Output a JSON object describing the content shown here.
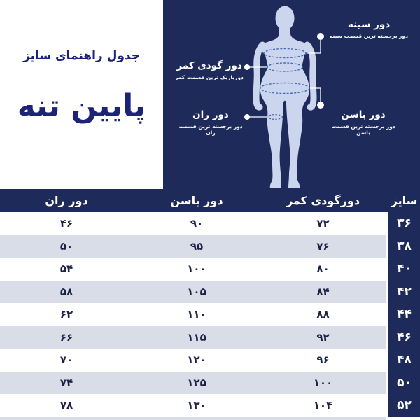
{
  "left_panel": {
    "heading": "جدول راهنمای سایز",
    "title": "پایین تنه"
  },
  "diagram": {
    "figure": "female-body-silhouette",
    "labels": {
      "chest": {
        "title": "دور سینه",
        "subtitle": "دور برجسته ترین قسمت سینه"
      },
      "waist": {
        "title": "دور گودی کمر",
        "subtitle": "دورباریک ترین قسمت کمر"
      },
      "hips": {
        "title": "دور باسن",
        "subtitle": "دور برجسته ترین قسمت باسن"
      },
      "thigh": {
        "title": "دور ران",
        "subtitle": "دور برجسته ترین قسمت ران"
      }
    }
  },
  "table": {
    "headers": {
      "size": "سایز",
      "waist": "دورگودی کمر",
      "hips": "دور باسن",
      "thigh": "دور ران"
    },
    "rows": [
      {
        "size": "۳۶",
        "waist": "۷۲",
        "hips": "۹۰",
        "thigh": "۴۶"
      },
      {
        "size": "۳۸",
        "waist": "۷۶",
        "hips": "۹۵",
        "thigh": "۵۰"
      },
      {
        "size": "۴۰",
        "waist": "۸۰",
        "hips": "۱۰۰",
        "thigh": "۵۴"
      },
      {
        "size": "۴۲",
        "waist": "۸۴",
        "hips": "۱۰۵",
        "thigh": "۵۸"
      },
      {
        "size": "۴۴",
        "waist": "۸۸",
        "hips": "۱۱۰",
        "thigh": "۶۲"
      },
      {
        "size": "۴۶",
        "waist": "۹۲",
        "hips": "۱۱۵",
        "thigh": "۶۶"
      },
      {
        "size": "۴۸",
        "waist": "۹۶",
        "hips": "۱۲۰",
        "thigh": "۷۰"
      },
      {
        "size": "۵۰",
        "waist": "۱۰۰",
        "hips": "۱۲۵",
        "thigh": "۷۴"
      },
      {
        "size": "۵۲",
        "waist": "۱۰۴",
        "hips": "۱۳۰",
        "thigh": "۷۸"
      }
    ]
  },
  "colors": {
    "navy": "#1e2b5a",
    "panel_text": "#1c2478",
    "silhouette": "#cbd6ee",
    "measure_ring": "#4a6cb8",
    "row_alt": "#d9dde7",
    "cell_text": "#1b2245"
  }
}
